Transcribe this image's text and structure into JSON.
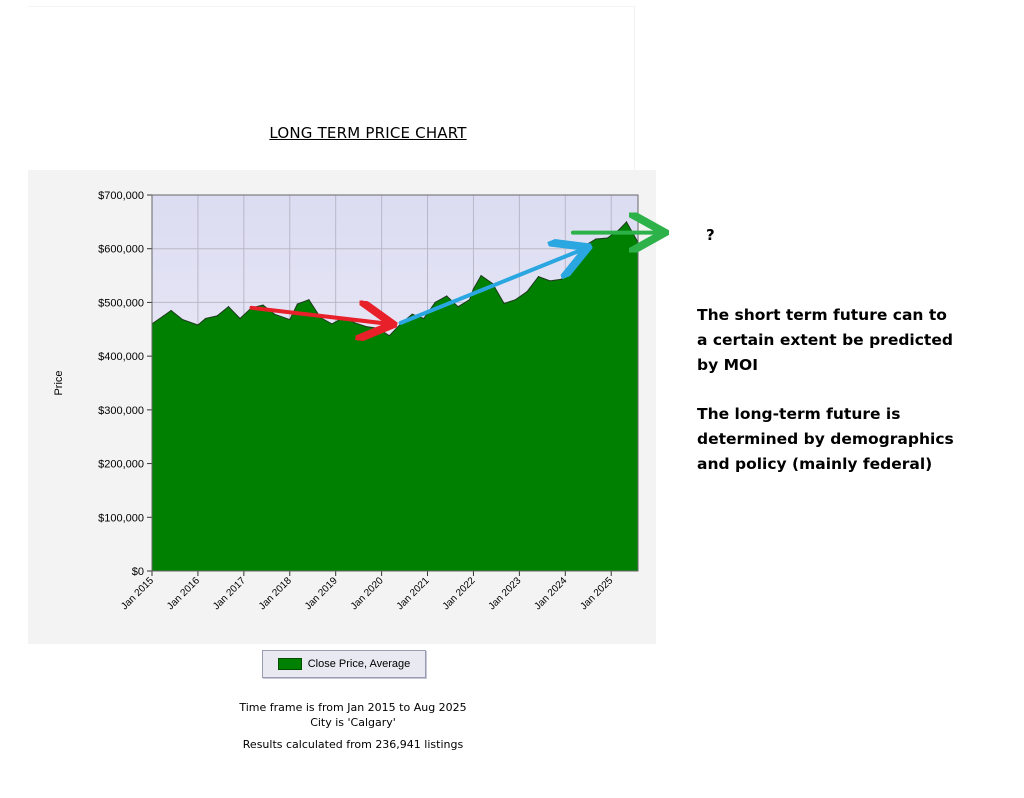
{
  "chart_data": {
    "type": "area",
    "title": "LONG TERM PRICE CHART",
    "ylabel": "Price",
    "xlabel": "",
    "ylim": [
      0,
      700000
    ],
    "y_ticks": [
      "$700,000",
      "$600,000",
      "$500,000",
      "$400,000",
      "$300,000",
      "$200,000",
      "$100,000",
      "$0"
    ],
    "x_ticks": [
      "Jan 2015",
      "Jan 2016",
      "Jan 2017",
      "Jan 2018",
      "Jan 2019",
      "Jan 2020",
      "Jan 2021",
      "Jan 2022",
      "Jan 2023",
      "Jan 2024",
      "Jan 2025"
    ],
    "x_range": [
      "2015-01",
      "2025-08"
    ],
    "grid": true,
    "legend_position": "bottom-center",
    "series": [
      {
        "name": "Close Price, Average",
        "color": "#008000",
        "points": [
          [
            "2015-01",
            460000
          ],
          [
            "2015-04",
            475000
          ],
          [
            "2015-06",
            485000
          ],
          [
            "2015-09",
            468000
          ],
          [
            "2016-01",
            458000
          ],
          [
            "2016-03",
            470000
          ],
          [
            "2016-06",
            475000
          ],
          [
            "2016-09",
            492000
          ],
          [
            "2016-12",
            470000
          ],
          [
            "2017-03",
            490000
          ],
          [
            "2017-06",
            495000
          ],
          [
            "2017-09",
            478000
          ],
          [
            "2018-01",
            468000
          ],
          [
            "2018-03",
            497000
          ],
          [
            "2018-06",
            505000
          ],
          [
            "2018-09",
            472000
          ],
          [
            "2018-12",
            460000
          ],
          [
            "2019-03",
            472000
          ],
          [
            "2019-06",
            462000
          ],
          [
            "2019-09",
            455000
          ],
          [
            "2019-12",
            452000
          ],
          [
            "2020-03",
            438000
          ],
          [
            "2020-06",
            460000
          ],
          [
            "2020-09",
            478000
          ],
          [
            "2020-12",
            470000
          ],
          [
            "2021-03",
            500000
          ],
          [
            "2021-06",
            512000
          ],
          [
            "2021-09",
            492000
          ],
          [
            "2021-12",
            505000
          ],
          [
            "2022-01",
            525000
          ],
          [
            "2022-03",
            550000
          ],
          [
            "2022-06",
            535000
          ],
          [
            "2022-09",
            498000
          ],
          [
            "2022-12",
            505000
          ],
          [
            "2023-03",
            520000
          ],
          [
            "2023-06",
            548000
          ],
          [
            "2023-09",
            540000
          ],
          [
            "2023-12",
            543000
          ],
          [
            "2024-03",
            575000
          ],
          [
            "2024-06",
            605000
          ],
          [
            "2024-09",
            618000
          ],
          [
            "2024-12",
            620000
          ],
          [
            "2025-03",
            635000
          ],
          [
            "2025-05",
            650000
          ],
          [
            "2025-08",
            612000
          ]
        ]
      }
    ],
    "annotations": [
      {
        "type": "arrow",
        "color": "#e8202a",
        "from": [
          "2017-03",
          490000
        ],
        "to": [
          "2020-03",
          460000
        ]
      },
      {
        "type": "arrow",
        "color": "#2aa6e0",
        "from": [
          "2020-06",
          462000
        ],
        "to": [
          "2024-06",
          600000
        ]
      },
      {
        "type": "arrow",
        "color": "#2db24a",
        "from": [
          "2024-03",
          630000
        ],
        "to": [
          "2026-02",
          630000
        ]
      }
    ]
  },
  "legend": {
    "label": "Close Price, Average"
  },
  "footer": {
    "line1": "Time frame is from Jan 2015 to Aug 2025",
    "line2": "City is 'Calgary'",
    "line3": "Results calculated from 236,941 listings"
  },
  "annotation_text": {
    "question": "?",
    "note1": "The short term future can to\na certain extent be predicted\nby MOI",
    "note2": "The long-term future is\ndetermined by demographics\nand policy (mainly federal)"
  }
}
